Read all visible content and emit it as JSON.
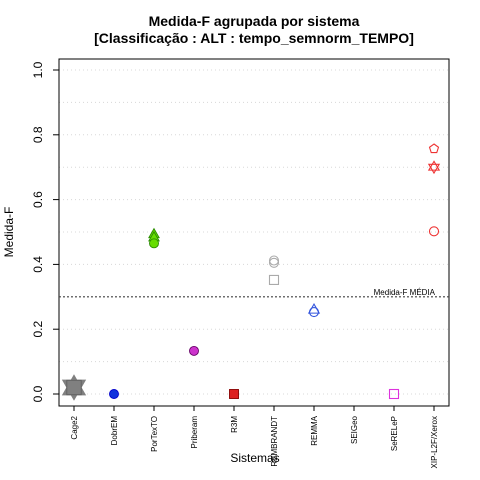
{
  "chart_data": {
    "type": "scatter",
    "title_line1": "Medida-F agrupada por sistema",
    "title_line2": "[Classificação : ALT : tempo_semnorm_TEMPO]",
    "xlabel": "Sistemas",
    "ylabel": "Medida-F",
    "ylim": [
      0,
      1
    ],
    "yticks": [
      "0.0",
      "0.2",
      "0.4",
      "0.6",
      "0.8",
      "1.0"
    ],
    "grid": "dotted horizontal",
    "categories": [
      "Cage2",
      "DobrEM",
      "PorTexTO",
      "Priberam",
      "R3M",
      "REMBRANDT",
      "REMMA",
      "SEIGeo",
      "SeRELeP",
      "XIP-L2F/Xerox"
    ],
    "reference_line": {
      "label": "Medida-F MÉDIA",
      "value": 0.3
    },
    "points": [
      {
        "category": "Cage2",
        "value": 0.02,
        "shape": "triangle-up",
        "color": "#808080",
        "fill": "#808080",
        "size": 2.2
      },
      {
        "category": "Cage2",
        "value": 0.02,
        "shape": "triangle-down",
        "color": "#808080",
        "fill": "#808080",
        "size": 2.2
      },
      {
        "category": "Cage2",
        "value": 0.02,
        "shape": "square",
        "color": "#606060",
        "fill": "#808080",
        "size": 1.6
      },
      {
        "category": "DobrEM",
        "value": 0.0,
        "shape": "circle",
        "color": "#0000cc",
        "fill": "#1133dd",
        "size": 1
      },
      {
        "category": "PorTexTO",
        "value": 0.493,
        "shape": "triangle-up",
        "color": "#2a8c00",
        "fill": "#66dd00",
        "size": 1
      },
      {
        "category": "PorTexTO",
        "value": 0.483,
        "shape": "triangle-up",
        "color": "#2a8c00",
        "fill": "#66dd00",
        "size": 1
      },
      {
        "category": "PorTexTO",
        "value": 0.465,
        "shape": "circle",
        "color": "#2a8c00",
        "fill": "#66dd00",
        "size": 1
      },
      {
        "category": "Priberam",
        "value": 0.133,
        "shape": "circle",
        "color": "#660066",
        "fill": "#cc33cc",
        "size": 1
      },
      {
        "category": "R3M",
        "value": 0.0,
        "shape": "square",
        "color": "#880000",
        "fill": "#dd2222",
        "size": 1
      },
      {
        "category": "REMBRANDT",
        "value": 0.412,
        "shape": "circle-open",
        "color": "#aaaaaa",
        "fill": "none",
        "size": 1
      },
      {
        "category": "REMBRANDT",
        "value": 0.405,
        "shape": "circle-open",
        "color": "#aaaaaa",
        "fill": "none",
        "size": 1
      },
      {
        "category": "REMBRANDT",
        "value": 0.352,
        "shape": "square-open",
        "color": "#aaaaaa",
        "fill": "none",
        "size": 1
      },
      {
        "category": "REMMA",
        "value": 0.26,
        "shape": "triangle-up-open",
        "color": "#3355dd",
        "fill": "none",
        "size": 1
      },
      {
        "category": "REMMA",
        "value": 0.253,
        "shape": "circle-open",
        "color": "#3355dd",
        "fill": "none",
        "size": 1
      },
      {
        "category": "SeRELeP",
        "value": 0.0,
        "shape": "square-open",
        "color": "#dd33dd",
        "fill": "none",
        "size": 1
      },
      {
        "category": "XIP-L2F/Xerox",
        "value": 0.757,
        "shape": "pentagon-open",
        "color": "#ee3333",
        "fill": "none",
        "size": 1
      },
      {
        "category": "XIP-L2F/Xerox",
        "value": 0.7,
        "shape": "star-open",
        "color": "#ee3333",
        "fill": "none",
        "size": 1
      },
      {
        "category": "XIP-L2F/Xerox",
        "value": 0.502,
        "shape": "circle-open",
        "color": "#ee3333",
        "fill": "none",
        "size": 1
      }
    ]
  }
}
